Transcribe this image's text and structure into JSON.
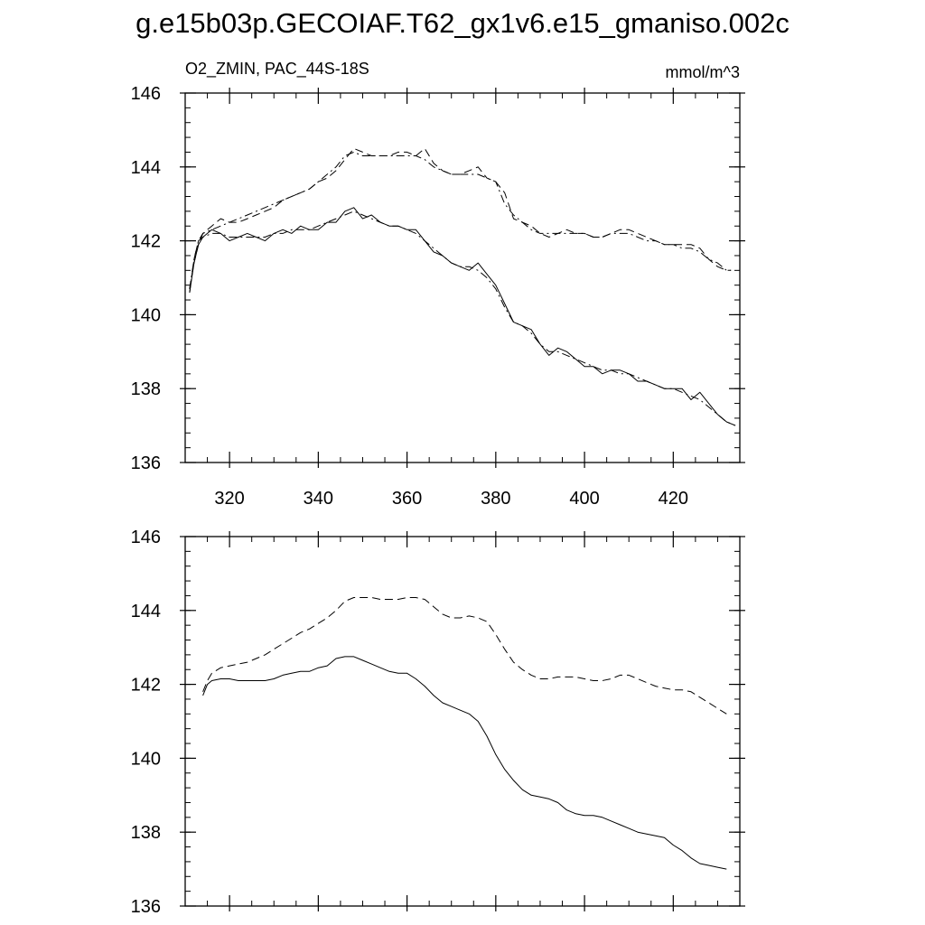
{
  "title": "g.e15b03p.GECOIAF.T62_gx1v6.e15_gmaniso.002c",
  "subtitle_left": "O2_ZMIN, PAC_44S-18S",
  "subtitle_right": "mmol/m^3",
  "chart_data": [
    {
      "type": "line",
      "panel": "top",
      "xlim": [
        310,
        435
      ],
      "ylim": [
        136,
        146
      ],
      "xticks": [
        320,
        340,
        360,
        380,
        400,
        420
      ],
      "yticks": [
        136,
        138,
        140,
        142,
        144,
        146
      ],
      "show_x_tick_labels": true,
      "series": [
        {
          "name": "upper-dashed",
          "style": "dashed",
          "x": [
            311,
            312,
            313,
            314,
            316,
            318,
            320,
            322,
            324,
            326,
            328,
            330,
            332,
            334,
            336,
            338,
            340,
            342,
            344,
            346,
            348,
            350,
            352,
            354,
            356,
            358,
            360,
            362,
            364,
            366,
            368,
            370,
            372,
            374,
            376,
            378,
            380,
            382,
            384,
            386,
            388,
            390,
            392,
            394,
            396,
            398,
            400,
            402,
            404,
            406,
            408,
            410,
            412,
            414,
            416,
            418,
            420,
            422,
            424,
            426,
            428,
            430,
            432,
            433
          ],
          "y": [
            140.7,
            141.4,
            141.9,
            142.2,
            142.4,
            142.6,
            142.5,
            142.5,
            142.6,
            142.7,
            142.8,
            142.9,
            143.1,
            143.2,
            143.3,
            143.4,
            143.6,
            143.7,
            143.9,
            144.2,
            144.5,
            144.4,
            144.3,
            144.3,
            144.3,
            144.4,
            144.4,
            144.3,
            144.5,
            144.1,
            143.9,
            143.8,
            143.8,
            143.9,
            144.0,
            143.7,
            143.6,
            143.3,
            142.6,
            142.5,
            142.4,
            142.2,
            142.1,
            142.2,
            142.3,
            142.2,
            142.2,
            142.1,
            142.1,
            142.2,
            142.3,
            142.3,
            142.2,
            142.1,
            142.0,
            141.9,
            141.9,
            141.9,
            141.9,
            141.8,
            141.5,
            141.3,
            141.2,
            141.2
          ]
        },
        {
          "name": "upper-dashdot",
          "style": "dashdot",
          "x": [
            311,
            312,
            313,
            314,
            316,
            318,
            320,
            322,
            324,
            326,
            328,
            330,
            332,
            334,
            336,
            338,
            340,
            342,
            344,
            346,
            348,
            350,
            352,
            354,
            356,
            358,
            360,
            362,
            364,
            366,
            368,
            370,
            372,
            374,
            376,
            378,
            380,
            382,
            384,
            386,
            388,
            390,
            392,
            394,
            396,
            398,
            400,
            402,
            404,
            406,
            408,
            410,
            412,
            414,
            416,
            418,
            420,
            422,
            424,
            426,
            428,
            430,
            432,
            433
          ],
          "y": [
            140.7,
            141.5,
            142.0,
            142.2,
            142.3,
            142.4,
            142.5,
            142.6,
            142.7,
            142.8,
            142.9,
            143.0,
            143.1,
            143.2,
            143.3,
            143.4,
            143.6,
            143.8,
            144.0,
            144.3,
            144.4,
            144.3,
            144.3,
            144.3,
            144.3,
            144.3,
            144.3,
            144.3,
            144.2,
            144.0,
            143.9,
            143.8,
            143.8,
            143.8,
            143.8,
            143.7,
            143.6,
            143.0,
            142.7,
            142.5,
            142.3,
            142.2,
            142.2,
            142.2,
            142.2,
            142.2,
            142.2,
            142.1,
            142.1,
            142.2,
            142.2,
            142.2,
            142.1,
            142.0,
            142.0,
            141.9,
            141.9,
            141.8,
            141.8,
            141.7,
            141.5,
            141.4,
            141.2,
            141.2
          ]
        },
        {
          "name": "lower-solid",
          "style": "solid",
          "x": [
            311,
            312,
            313,
            314,
            316,
            318,
            320,
            322,
            324,
            326,
            328,
            330,
            332,
            334,
            336,
            338,
            340,
            342,
            344,
            346,
            348,
            350,
            352,
            354,
            356,
            358,
            360,
            362,
            364,
            366,
            368,
            370,
            372,
            374,
            376,
            378,
            380,
            382,
            384,
            386,
            388,
            390,
            392,
            394,
            396,
            398,
            400,
            402,
            404,
            406,
            408,
            410,
            412,
            414,
            416,
            418,
            420,
            422,
            424,
            426,
            428,
            430,
            432,
            434
          ],
          "y": [
            140.6,
            141.4,
            141.9,
            142.1,
            142.3,
            142.2,
            142.0,
            142.1,
            142.2,
            142.1,
            142.0,
            142.2,
            142.3,
            142.2,
            142.4,
            142.3,
            142.3,
            142.5,
            142.5,
            142.8,
            142.9,
            142.6,
            142.7,
            142.5,
            142.4,
            142.4,
            142.3,
            142.3,
            142.0,
            141.7,
            141.6,
            141.4,
            141.3,
            141.2,
            141.4,
            141.1,
            140.8,
            140.3,
            139.8,
            139.7,
            139.6,
            139.2,
            138.9,
            139.1,
            139.0,
            138.8,
            138.6,
            138.6,
            138.4,
            138.5,
            138.5,
            138.4,
            138.2,
            138.2,
            138.1,
            138.0,
            138.0,
            138.0,
            137.7,
            137.9,
            137.6,
            137.3,
            137.1,
            137.0
          ]
        },
        {
          "name": "lower-dashdot",
          "style": "dashdot",
          "x": [
            311,
            312,
            313,
            314,
            316,
            318,
            320,
            322,
            324,
            326,
            328,
            330,
            332,
            334,
            336,
            338,
            340,
            342,
            344,
            346,
            348,
            350,
            352,
            354,
            356,
            358,
            360,
            362,
            364,
            366,
            368,
            370,
            372,
            374,
            376,
            378,
            380,
            382,
            384,
            386,
            388,
            390,
            392,
            394,
            396,
            398,
            400,
            402,
            404,
            406,
            408,
            410,
            412,
            414,
            416,
            418,
            420,
            422,
            424,
            426,
            428,
            430,
            432,
            434
          ],
          "y": [
            140.6,
            141.5,
            142.0,
            142.1,
            142.2,
            142.2,
            142.1,
            142.1,
            142.1,
            142.1,
            142.1,
            142.2,
            142.2,
            142.3,
            142.3,
            142.3,
            142.4,
            142.5,
            142.6,
            142.7,
            142.8,
            142.7,
            142.6,
            142.5,
            142.4,
            142.4,
            142.3,
            142.2,
            142.0,
            141.8,
            141.6,
            141.4,
            141.3,
            141.3,
            141.2,
            141.0,
            140.7,
            140.2,
            139.8,
            139.7,
            139.5,
            139.2,
            139.0,
            139.0,
            138.9,
            138.8,
            138.7,
            138.6,
            138.5,
            138.5,
            138.4,
            138.4,
            138.3,
            138.2,
            138.1,
            138.0,
            138.0,
            137.9,
            137.8,
            137.7,
            137.5,
            137.3,
            137.1,
            137.0
          ]
        }
      ]
    },
    {
      "type": "line",
      "panel": "bottom",
      "xlim": [
        310,
        435
      ],
      "ylim": [
        136,
        146
      ],
      "xticks": [
        320,
        340,
        360,
        380,
        400,
        420
      ],
      "yticks": [
        136,
        138,
        140,
        142,
        144,
        146
      ],
      "show_x_tick_labels": false,
      "series": [
        {
          "name": "smoothed-dashed",
          "style": "dashed",
          "x": [
            314,
            315,
            316,
            318,
            320,
            322,
            324,
            326,
            328,
            330,
            332,
            334,
            336,
            338,
            340,
            342,
            344,
            346,
            348,
            350,
            352,
            354,
            356,
            358,
            360,
            362,
            364,
            366,
            368,
            370,
            372,
            374,
            376,
            378,
            380,
            382,
            384,
            386,
            388,
            390,
            392,
            394,
            396,
            398,
            400,
            402,
            404,
            406,
            408,
            410,
            412,
            414,
            416,
            418,
            420,
            422,
            424,
            426,
            428,
            430,
            432
          ],
          "y": [
            141.8,
            142.1,
            142.3,
            142.45,
            142.5,
            142.55,
            142.6,
            142.7,
            142.8,
            142.95,
            143.1,
            143.25,
            143.4,
            143.5,
            143.65,
            143.8,
            144.0,
            144.25,
            144.35,
            144.35,
            144.35,
            144.3,
            144.3,
            144.3,
            144.35,
            144.35,
            144.3,
            144.1,
            143.9,
            143.8,
            143.8,
            143.85,
            143.8,
            143.7,
            143.35,
            142.95,
            142.6,
            142.4,
            142.25,
            142.15,
            142.15,
            142.2,
            142.2,
            142.2,
            142.15,
            142.1,
            142.1,
            142.15,
            142.25,
            142.25,
            142.15,
            142.05,
            141.95,
            141.9,
            141.85,
            141.85,
            141.8,
            141.65,
            141.5,
            141.35,
            141.2
          ]
        },
        {
          "name": "smoothed-solid",
          "style": "solid",
          "x": [
            314,
            315,
            316,
            318,
            320,
            322,
            324,
            326,
            328,
            330,
            332,
            334,
            336,
            338,
            340,
            342,
            344,
            346,
            348,
            350,
            352,
            354,
            356,
            358,
            360,
            362,
            364,
            366,
            368,
            370,
            372,
            374,
            376,
            378,
            380,
            382,
            384,
            386,
            388,
            390,
            392,
            394,
            396,
            398,
            400,
            402,
            404,
            406,
            408,
            410,
            412,
            414,
            416,
            418,
            420,
            422,
            424,
            426,
            428,
            430,
            432
          ],
          "y": [
            141.7,
            142.0,
            142.1,
            142.15,
            142.15,
            142.1,
            142.1,
            142.1,
            142.1,
            142.15,
            142.25,
            142.3,
            142.35,
            142.35,
            142.45,
            142.5,
            142.7,
            142.75,
            142.75,
            142.65,
            142.55,
            142.45,
            142.35,
            142.3,
            142.3,
            142.15,
            141.95,
            141.7,
            141.5,
            141.4,
            141.3,
            141.2,
            141.0,
            140.6,
            140.1,
            139.7,
            139.4,
            139.15,
            139.0,
            138.95,
            138.9,
            138.8,
            138.6,
            138.5,
            138.45,
            138.45,
            138.4,
            138.3,
            138.2,
            138.1,
            138.0,
            137.95,
            137.9,
            137.85,
            137.65,
            137.5,
            137.3,
            137.15,
            137.1,
            137.05,
            137.0
          ]
        }
      ]
    }
  ]
}
